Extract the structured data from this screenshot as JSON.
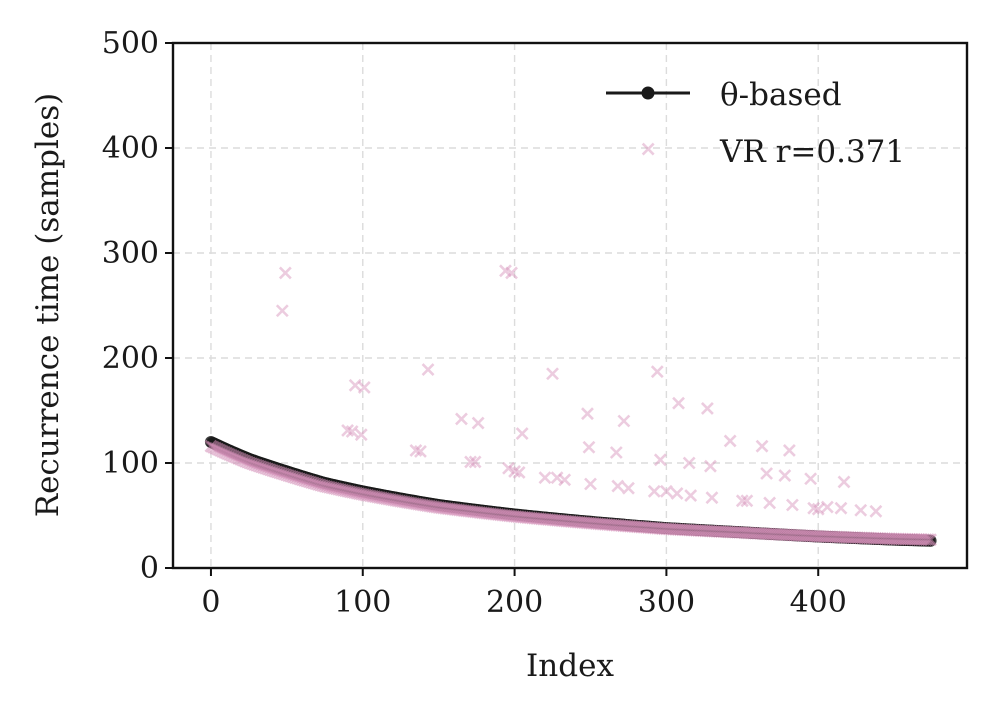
{
  "chart_data": {
    "type": "scatter",
    "xlabel": "Index",
    "ylabel": "Recurrence time (samples)",
    "xlim": [
      -25,
      498
    ],
    "ylim": [
      0,
      500
    ],
    "x_ticks": [
      0,
      100,
      200,
      300,
      400
    ],
    "y_ticks": [
      0,
      100,
      200,
      300,
      400,
      500
    ],
    "x_tick_labels": [
      "0",
      "100",
      "200",
      "300",
      "400"
    ],
    "y_tick_labels": [
      "0",
      "100",
      "200",
      "300",
      "400",
      "500"
    ],
    "grid": true,
    "legend_position": "top-right",
    "colors": {
      "theta": "#1a1a1a",
      "vr": "#d48fb8"
    },
    "series": [
      {
        "name": "θ-based",
        "style": "line-with-markers",
        "curve": {
          "n_points": 475,
          "x_start": 0,
          "x_end": 474,
          "y_start": 120,
          "y_end": 26,
          "sample": [
            [
              0,
              120
            ],
            [
              25,
              104
            ],
            [
              50,
              92
            ],
            [
              75,
              81
            ],
            [
              100,
              73
            ],
            [
              150,
              60
            ],
            [
              200,
              51
            ],
            [
              250,
              44
            ],
            [
              300,
              38
            ],
            [
              350,
              34
            ],
            [
              400,
              30
            ],
            [
              450,
              27
            ],
            [
              474,
              26
            ]
          ]
        }
      },
      {
        "name": "VR r=0.371",
        "style": "x-markers",
        "points": [
          [
            47,
            245
          ],
          [
            49,
            281
          ],
          [
            90,
            131
          ],
          [
            93,
            130
          ],
          [
            95,
            174
          ],
          [
            99,
            127
          ],
          [
            101,
            172
          ],
          [
            135,
            112
          ],
          [
            138,
            111
          ],
          [
            143,
            189
          ],
          [
            165,
            142
          ],
          [
            171,
            101
          ],
          [
            174,
            101
          ],
          [
            176,
            138
          ],
          [
            194,
            283
          ],
          [
            196,
            95
          ],
          [
            198,
            281
          ],
          [
            200,
            92
          ],
          [
            203,
            91
          ],
          [
            205,
            128
          ],
          [
            220,
            86
          ],
          [
            225,
            185
          ],
          [
            228,
            86
          ],
          [
            233,
            84
          ],
          [
            248,
            147
          ],
          [
            249,
            115
          ],
          [
            250,
            80
          ],
          [
            267,
            110
          ],
          [
            268,
            78
          ],
          [
            272,
            140
          ],
          [
            275,
            76
          ],
          [
            288,
            399
          ],
          [
            292,
            73
          ],
          [
            294,
            187
          ],
          [
            296,
            103
          ],
          [
            300,
            73
          ],
          [
            307,
            71
          ],
          [
            308,
            157
          ],
          [
            315,
            100
          ],
          [
            316,
            69
          ],
          [
            327,
            152
          ],
          [
            329,
            97
          ],
          [
            330,
            67
          ],
          [
            342,
            121
          ],
          [
            350,
            64
          ],
          [
            353,
            64
          ],
          [
            363,
            116
          ],
          [
            366,
            90
          ],
          [
            368,
            62
          ],
          [
            378,
            88
          ],
          [
            381,
            112
          ],
          [
            383,
            60
          ],
          [
            395,
            85
          ],
          [
            397,
            57
          ],
          [
            400,
            56
          ],
          [
            406,
            58
          ],
          [
            415,
            57
          ],
          [
            417,
            82
          ],
          [
            428,
            55
          ],
          [
            438,
            54
          ]
        ],
        "dense_band": {
          "x_start": 0,
          "x_end": 474,
          "offset_start": -4,
          "offset_end": 1
        }
      }
    ]
  }
}
